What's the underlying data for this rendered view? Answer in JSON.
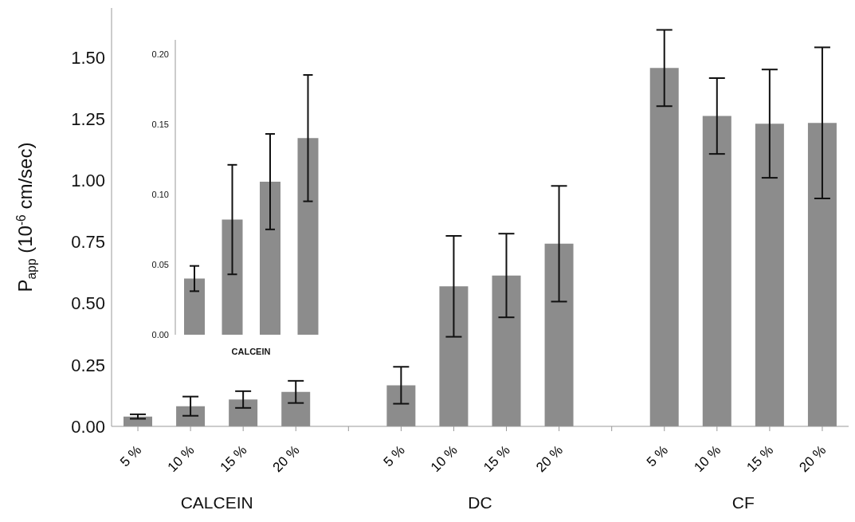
{
  "chart_data": [
    {
      "type": "bar",
      "ylabel": "P$_{app}$  (10$^{-6}$ cm/sec)",
      "categories": [
        "5 %",
        "10 %",
        "15 %",
        "20 %",
        null,
        "5 %",
        "10 %",
        "15 %",
        "20 %",
        null,
        "5 %",
        "10 %",
        "15 %",
        "20 %"
      ],
      "values": [
        0.04,
        0.082,
        0.109,
        0.14,
        null,
        0.167,
        0.569,
        0.613,
        0.742,
        null,
        1.456,
        1.261,
        1.23,
        1.233
      ],
      "errors": [
        0.009,
        0.039,
        0.034,
        0.045,
        null,
        0.075,
        0.205,
        0.17,
        0.235,
        null,
        0.155,
        0.154,
        0.22,
        0.307
      ],
      "color": "#8c8c8c",
      "ylim": [
        0,
        1.7
      ],
      "yticks": [
        {
          "value": 0,
          "label": "0.00"
        },
        {
          "value": 0.25,
          "label": "0.25"
        },
        {
          "value": 0.5,
          "label": "0.50"
        },
        {
          "value": 0.75,
          "label": "0.75"
        },
        {
          "value": 1,
          "label": "1.00"
        },
        {
          "value": 1.25,
          "label": "1.25"
        },
        {
          "value": 1.5,
          "label": "1.50"
        }
      ],
      "annotations": [
        "CALCEIN",
        "DC",
        "CF"
      ]
    },
    {
      "type": "bar",
      "xlabel": "CALCEIN",
      "categories": [
        null,
        null,
        null,
        null
      ],
      "values": [
        0.04,
        0.082,
        0.109,
        0.14
      ],
      "errors": [
        0.009,
        0.039,
        0.034,
        0.045
      ],
      "color": "#8c8c8c",
      "ylim": [
        0,
        0.21
      ],
      "yticks": [
        {
          "value": 0,
          "label": "0.00"
        },
        {
          "value": 0.05,
          "label": "0.05"
        },
        {
          "value": 0.1,
          "label": "0.10"
        },
        {
          "value": 0.15,
          "label": "0.15"
        },
        {
          "value": 0.2,
          "label": "0.20"
        }
      ]
    }
  ]
}
